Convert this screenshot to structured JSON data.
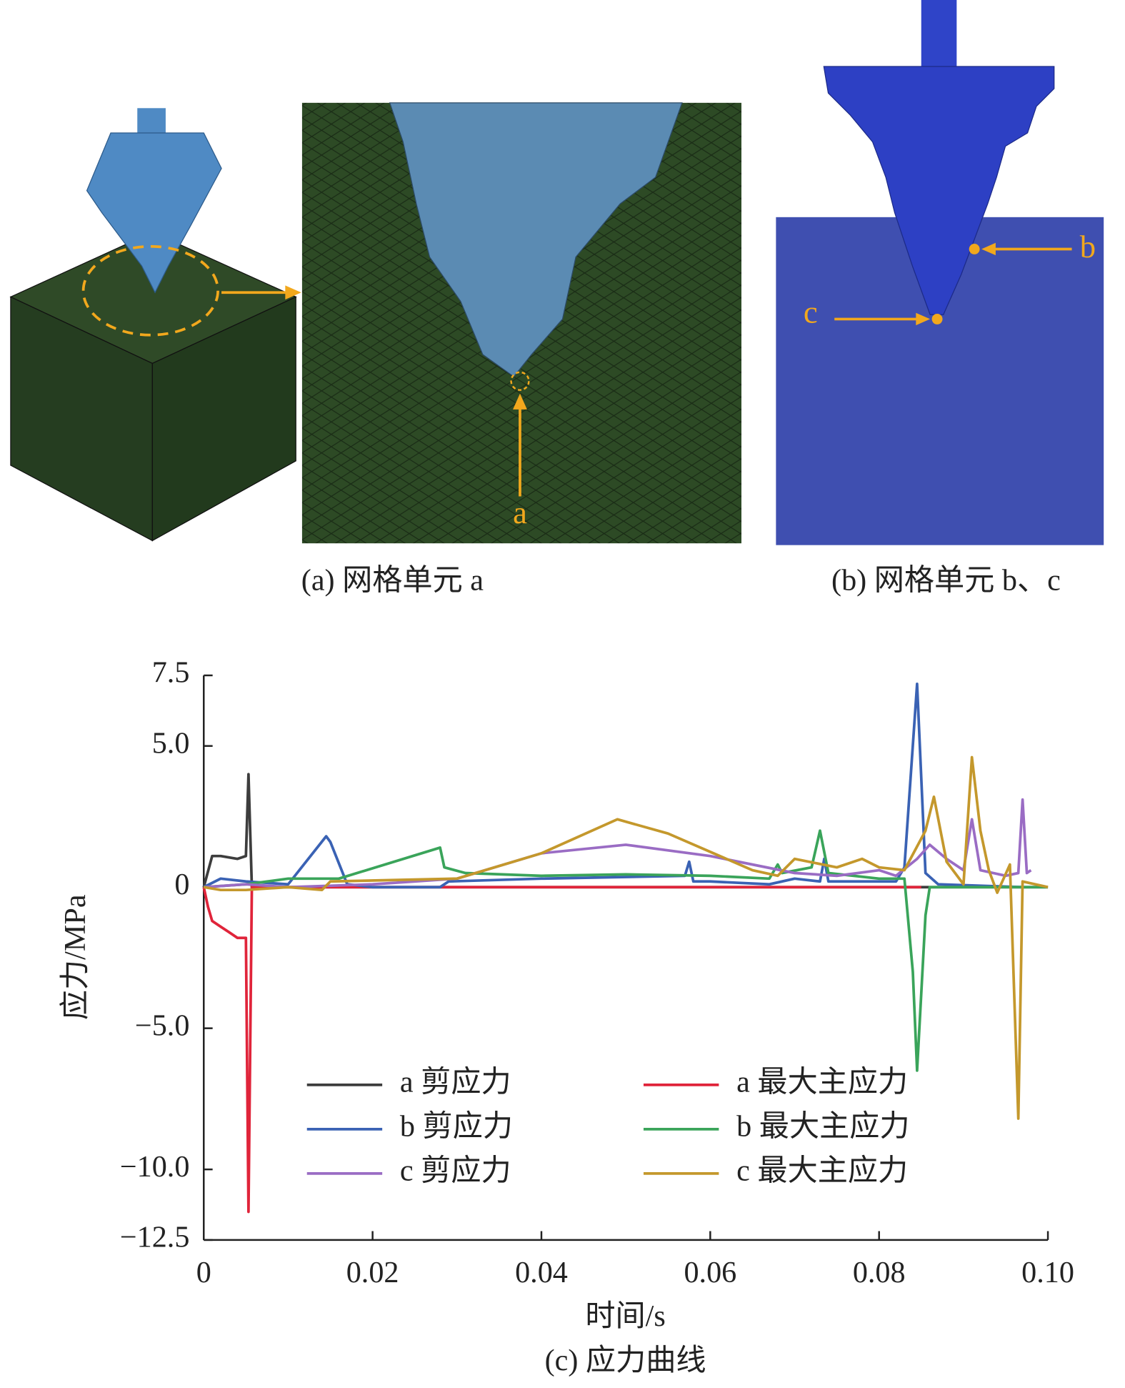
{
  "figure": {
    "captions": [
      "(a) 网格单元 a",
      "(b) 网格单元 b、c"
    ],
    "markers": [
      "a",
      "b",
      "c"
    ]
  },
  "chart_data": {
    "type": "line",
    "caption": "(c) 应力曲线",
    "xlabel": "时间/s",
    "ylabel": "应力/MPa",
    "xlim": [
      0,
      0.1
    ],
    "xticks": [
      0,
      0.02,
      0.04,
      0.06,
      0.08,
      {
        "value": 0.1,
        "label": "0.10"
      }
    ],
    "ylim": [
      -12.5,
      7.5
    ],
    "yticks": [
      {
        "value": -12.5,
        "label": "−12.5"
      },
      {
        "value": -10,
        "label": "−10.0"
      },
      {
        "value": -5,
        "label": "−5.0"
      },
      0,
      {
        "value": 5,
        "label": "5.0"
      },
      7.5
    ],
    "legend": "lower center",
    "grid": false,
    "series": [
      {
        "name": "a 剪应力",
        "color": "#3d3d3d",
        "x": [
          0,
          0.001,
          0.002,
          0.004,
          0.005,
          0.0053,
          0.0057,
          0.1
        ],
        "values": [
          0,
          1.1,
          1.1,
          1.0,
          1.1,
          4.0,
          0,
          0
        ]
      },
      {
        "name": "a 最大主应力",
        "color": "#e0243a",
        "x": [
          0,
          0.0005,
          0.001,
          0.002,
          0.003,
          0.004,
          0.005,
          0.0053,
          0.0057,
          0.085
        ],
        "values": [
          0,
          -0.7,
          -1.2,
          -1.4,
          -1.6,
          -1.8,
          -1.8,
          -11.5,
          0,
          0
        ]
      },
      {
        "name": "b 剪应力",
        "color": "#3a62b4",
        "x": [
          0,
          0.002,
          0.005,
          0.01,
          0.0145,
          0.015,
          0.017,
          0.02,
          0.028,
          0.029,
          0.04,
          0.057,
          0.0575,
          0.058,
          0.06,
          0.067,
          0.07,
          0.073,
          0.0735,
          0.074,
          0.082,
          0.083,
          0.0845,
          0.0855,
          0.087,
          0.097
        ],
        "values": [
          0,
          0.3,
          0.2,
          0.1,
          1.8,
          1.6,
          0.1,
          0,
          0,
          0.2,
          0.3,
          0.4,
          0.9,
          0.2,
          0.2,
          0.1,
          0.3,
          0.2,
          1.0,
          0.2,
          0.2,
          0.7,
          7.2,
          0.5,
          0.1,
          0
        ]
      },
      {
        "name": "b 最大主应力",
        "color": "#3aa45a",
        "x": [
          0,
          0.005,
          0.01,
          0.012,
          0.016,
          0.028,
          0.0285,
          0.031,
          0.04,
          0.05,
          0.06,
          0.067,
          0.068,
          0.0685,
          0.072,
          0.073,
          0.074,
          0.08,
          0.083,
          0.084,
          0.0845,
          0.0855,
          0.086,
          0.1
        ],
        "values": [
          0,
          0.1,
          0.3,
          0.3,
          0.3,
          1.4,
          0.7,
          0.5,
          0.4,
          0.45,
          0.4,
          0.3,
          0.8,
          0.5,
          0.7,
          2.0,
          0.5,
          0.3,
          0.3,
          -3.0,
          -6.5,
          -1.0,
          0,
          0
        ]
      },
      {
        "name": "c 剪应力",
        "color": "#9a6cc4",
        "x": [
          0,
          0.005,
          0.01,
          0.02,
          0.03,
          0.04,
          0.05,
          0.06,
          0.07,
          0.075,
          0.08,
          0.082,
          0.0845,
          0.086,
          0.088,
          0.09,
          0.091,
          0.092,
          0.095,
          0.0965,
          0.097,
          0.0975,
          0.098
        ],
        "values": [
          0,
          0.1,
          0,
          0.1,
          0.3,
          1.2,
          1.5,
          1.1,
          0.5,
          0.4,
          0.6,
          0.4,
          1.0,
          1.5,
          1.0,
          0.6,
          2.4,
          0.6,
          0.4,
          0.5,
          3.1,
          0.5,
          0.6
        ]
      },
      {
        "name": "c 最大主应力",
        "color": "#c4982c",
        "x": [
          0,
          0.002,
          0.005,
          0.01,
          0.014,
          0.015,
          0.03,
          0.04,
          0.049,
          0.055,
          0.065,
          0.068,
          0.07,
          0.075,
          0.078,
          0.08,
          0.083,
          0.0855,
          0.0865,
          0.088,
          0.09,
          0.091,
          0.092,
          0.093,
          0.094,
          0.0955,
          0.0965,
          0.097,
          0.1
        ],
        "values": [
          0,
          -0.1,
          -0.1,
          0,
          -0.1,
          0.2,
          0.3,
          1.2,
          2.4,
          1.9,
          0.6,
          0.4,
          1.0,
          0.7,
          1.0,
          0.7,
          0.6,
          2.0,
          3.2,
          0.9,
          0.1,
          4.6,
          2.0,
          0.6,
          -0.2,
          0.8,
          -8.2,
          0.2,
          0
        ]
      }
    ]
  }
}
